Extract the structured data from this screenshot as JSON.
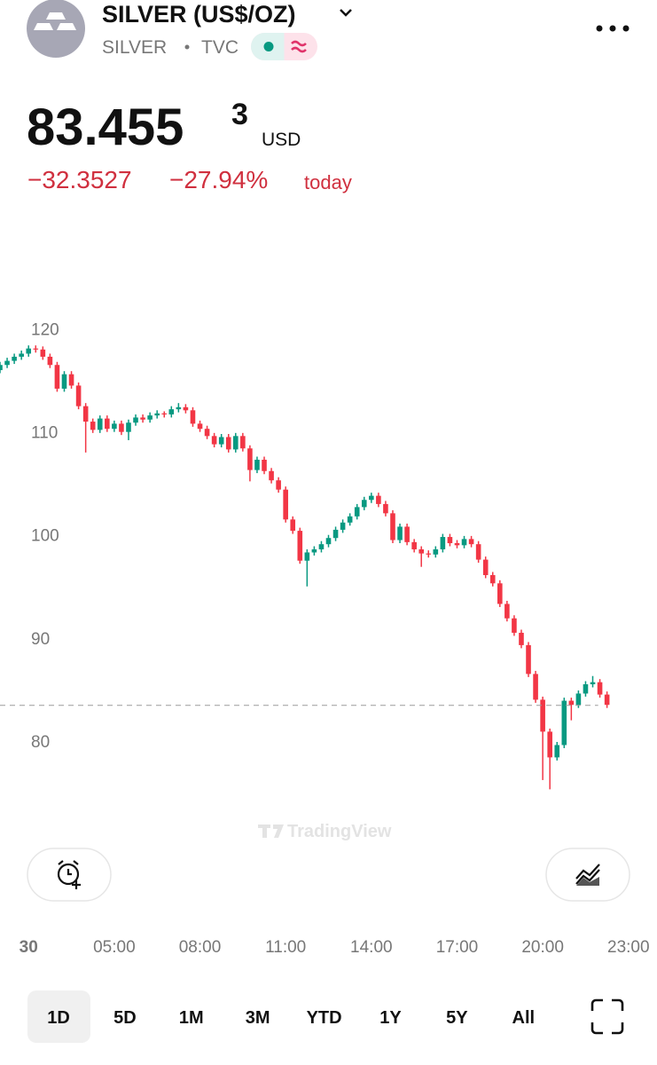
{
  "header": {
    "title": "SILVER (US$/OZ)",
    "symbol": "SILVER",
    "exchange": "TVC",
    "price": "83.455",
    "price_superscript": "3",
    "currency": "USD",
    "change": "−32.3527",
    "change_percent": "−27.94%",
    "change_period": "today"
  },
  "watermark": "TradingView",
  "ranges": [
    "1D",
    "5D",
    "1M",
    "3M",
    "YTD",
    "1Y",
    "5Y",
    "All"
  ],
  "chart_data": {
    "type": "candlestick",
    "up_color": "#089981",
    "down_color": "#f23645",
    "xlim": [
      1,
      24
    ],
    "ylim": [
      71.8,
      123.5
    ],
    "xticks": [
      {
        "value": 2,
        "label": "30"
      },
      {
        "value": 5,
        "label": "05:00"
      },
      {
        "value": 8,
        "label": "08:00"
      },
      {
        "value": 11,
        "label": "11:00"
      },
      {
        "value": 14,
        "label": "14:00"
      },
      {
        "value": 17,
        "label": "17:00"
      },
      {
        "value": 20,
        "label": "20:00"
      },
      {
        "value": 23,
        "label": "23:00"
      }
    ],
    "yticks": [
      80,
      90,
      100,
      110,
      120
    ],
    "last_price": 83.4553,
    "x": [
      1,
      1.25,
      1.5,
      1.75,
      2,
      2.25,
      2.5,
      2.75,
      3,
      3.25,
      3.5,
      3.75,
      4,
      4.25,
      4.5,
      4.75,
      5,
      5.25,
      5.5,
      5.75,
      6,
      6.25,
      6.5,
      6.75,
      7,
      7.25,
      7.5,
      7.75,
      8,
      8.25,
      8.5,
      8.75,
      9,
      9.25,
      9.5,
      9.75,
      10,
      10.25,
      10.5,
      10.75,
      11,
      11.25,
      11.5,
      11.75,
      12,
      12.25,
      12.5,
      12.75,
      13,
      13.25,
      13.5,
      13.75,
      14,
      14.25,
      14.5,
      14.75,
      15,
      15.25,
      15.5,
      15.75,
      16,
      16.25,
      16.5,
      16.75,
      17,
      17.25,
      17.5,
      17.75,
      18,
      18.25,
      18.5,
      18.75,
      19,
      19.25,
      19.5,
      19.75,
      20,
      20.25,
      20.5,
      20.75,
      21,
      21.25,
      21.5,
      21.75,
      22,
      22.25
    ],
    "open": [
      116.0,
      116.5,
      116.9,
      117.3,
      117.6,
      118.1,
      118.0,
      117.3,
      116.5,
      114.2,
      115.6,
      114.5,
      112.5,
      111.0,
      110.2,
      111.3,
      110.3,
      110.8,
      110.0,
      110.9,
      111.4,
      111.2,
      111.6,
      111.8,
      111.7,
      112.2,
      112.4,
      112.1,
      110.8,
      110.3,
      109.6,
      108.8,
      109.5,
      108.3,
      109.6,
      108.4,
      106.3,
      107.3,
      106.2,
      105.3,
      104.4,
      101.5,
      100.4,
      97.5,
      98.3,
      98.6,
      99.1,
      99.7,
      100.5,
      101.2,
      101.8,
      102.7,
      103.4,
      103.8,
      103.0,
      102.1,
      99.5,
      100.8,
      99.3,
      98.6,
      98.2,
      98.1,
      98.6,
      99.8,
      99.2,
      99.0,
      99.6,
      99.1,
      97.6,
      96.1,
      95.3,
      93.3,
      91.9,
      90.5,
      89.3,
      86.5,
      84.0,
      80.9,
      78.4,
      79.6,
      83.9,
      83.5,
      84.6,
      85.5,
      85.7,
      84.5
    ],
    "high": [
      116.8,
      117.2,
      117.6,
      117.9,
      118.4,
      118.4,
      118.3,
      117.6,
      116.8,
      115.9,
      115.9,
      114.8,
      112.8,
      111.3,
      111.6,
      111.6,
      111.1,
      111.1,
      111.2,
      111.7,
      111.7,
      111.9,
      112.1,
      112.0,
      112.5,
      112.8,
      112.7,
      112.4,
      111.1,
      110.6,
      109.9,
      109.8,
      109.8,
      109.9,
      109.9,
      108.7,
      107.6,
      107.6,
      106.5,
      105.6,
      104.7,
      101.8,
      100.7,
      98.6,
      98.9,
      99.4,
      100.0,
      100.8,
      101.5,
      102.1,
      103.0,
      103.7,
      104.1,
      104.1,
      103.3,
      102.4,
      101.1,
      101.1,
      99.6,
      98.9,
      98.5,
      98.9,
      100.1,
      100.1,
      99.5,
      99.9,
      99.9,
      99.4,
      97.9,
      96.4,
      95.6,
      93.6,
      92.2,
      90.8,
      89.6,
      86.8,
      84.3,
      81.2,
      79.9,
      84.2,
      84.2,
      84.9,
      85.8,
      86.3,
      86.0,
      84.8
    ],
    "low": [
      115.7,
      116.2,
      116.6,
      117.0,
      117.3,
      117.7,
      117.0,
      116.2,
      113.9,
      113.9,
      114.2,
      112.2,
      108.0,
      109.9,
      109.9,
      110.0,
      110.0,
      109.7,
      109.2,
      110.6,
      110.9,
      110.9,
      111.3,
      111.4,
      111.4,
      111.9,
      111.8,
      110.5,
      110.0,
      109.3,
      108.5,
      108.5,
      108.0,
      108.0,
      108.1,
      105.2,
      106.0,
      105.9,
      105.0,
      104.1,
      101.2,
      100.1,
      97.2,
      95.0,
      98.0,
      98.3,
      98.8,
      99.4,
      100.2,
      100.9,
      101.5,
      102.4,
      103.1,
      102.7,
      101.8,
      99.2,
      99.2,
      99.0,
      98.3,
      96.9,
      97.8,
      97.8,
      98.3,
      98.9,
      98.7,
      98.7,
      98.8,
      97.3,
      95.8,
      95.0,
      93.0,
      91.6,
      90.2,
      89.0,
      86.2,
      83.7,
      76.2,
      75.3,
      78.1,
      79.3,
      82.0,
      83.2,
      84.3,
      85.2,
      84.2,
      83.2
    ],
    "close": [
      116.5,
      116.9,
      117.3,
      117.6,
      118.1,
      118.0,
      117.3,
      116.5,
      114.2,
      115.6,
      114.5,
      112.5,
      111.0,
      110.2,
      111.3,
      110.3,
      110.8,
      110.0,
      110.9,
      111.4,
      111.2,
      111.6,
      111.8,
      111.7,
      112.2,
      112.4,
      112.1,
      110.8,
      110.3,
      109.6,
      108.8,
      109.5,
      108.3,
      109.6,
      108.4,
      106.3,
      107.3,
      106.2,
      105.3,
      104.4,
      101.5,
      100.4,
      97.5,
      98.3,
      98.6,
      99.1,
      99.7,
      100.5,
      101.2,
      101.8,
      102.7,
      103.4,
      103.8,
      103.0,
      102.1,
      99.5,
      100.8,
      99.3,
      98.6,
      98.2,
      98.1,
      98.6,
      99.8,
      99.2,
      99.0,
      99.6,
      99.1,
      97.6,
      96.1,
      95.3,
      93.3,
      91.9,
      90.5,
      89.3,
      86.5,
      84.0,
      80.9,
      78.4,
      79.6,
      83.9,
      83.5,
      84.6,
      85.5,
      85.7,
      84.5,
      83.5
    ]
  }
}
